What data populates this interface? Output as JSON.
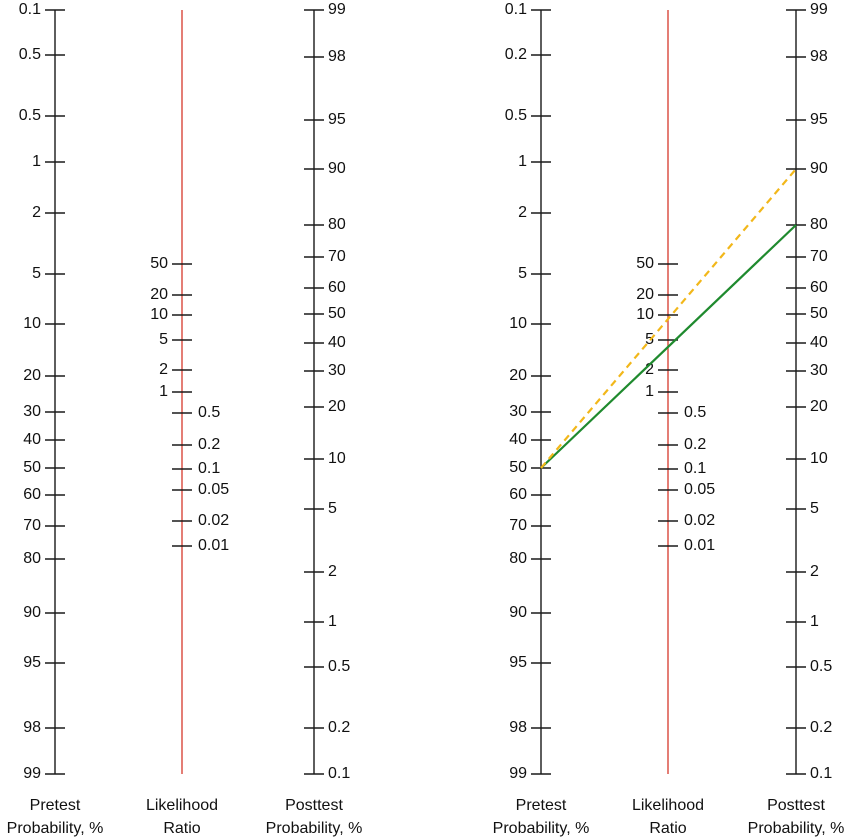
{
  "colors": {
    "axis": "#1a1a1a",
    "likelihood_axis": "#d9483b",
    "solid_line": "#1f8a2e",
    "dashed_line": "#f2b71a"
  },
  "axis_labels": {
    "pretest": [
      "Pretest",
      "Probability, %"
    ],
    "likelihood": [
      "Likelihood",
      "Ratio"
    ],
    "posttest": [
      "Posttest",
      "Probability, %"
    ]
  },
  "nomograms": [
    {
      "pretest_ticks": [
        "0.1",
        "0.5",
        "0.5",
        "1",
        "2",
        "5",
        "10",
        "20",
        "30",
        "40",
        "50",
        "60",
        "70",
        "80",
        "90",
        "95",
        "98",
        "99"
      ],
      "lr_left_ticks": [
        "50",
        "20",
        "10",
        "5",
        "2",
        "1"
      ],
      "lr_right_ticks": [
        "0.5",
        "0.2",
        "0.1",
        "0.05",
        "0.02",
        "0.01"
      ],
      "posttest_ticks": [
        "99",
        "98",
        "95",
        "90",
        "80",
        "70",
        "60",
        "50",
        "40",
        "30",
        "20",
        "10",
        "5",
        "2",
        "1",
        "0.5",
        "0.2",
        "0.1"
      ]
    },
    {
      "pretest_ticks": [
        "0.1",
        "0.2",
        "0.5",
        "1",
        "2",
        "5",
        "10",
        "20",
        "30",
        "40",
        "50",
        "60",
        "70",
        "80",
        "90",
        "95",
        "98",
        "99"
      ],
      "lr_left_ticks": [
        "50",
        "20",
        "10",
        "5",
        "2",
        "1"
      ],
      "lr_right_ticks": [
        "0.5",
        "0.2",
        "0.1",
        "0.05",
        "0.02",
        "0.01"
      ],
      "posttest_ticks": [
        "99",
        "98",
        "95",
        "90",
        "80",
        "70",
        "60",
        "50",
        "40",
        "30",
        "20",
        "10",
        "5",
        "2",
        "1",
        "0.5",
        "0.2",
        "0.1"
      ],
      "lines": [
        {
          "style": "solid",
          "pretest": 50,
          "posttest": 80
        },
        {
          "style": "dashed",
          "pretest": 50,
          "posttest": 90
        }
      ]
    }
  ]
}
